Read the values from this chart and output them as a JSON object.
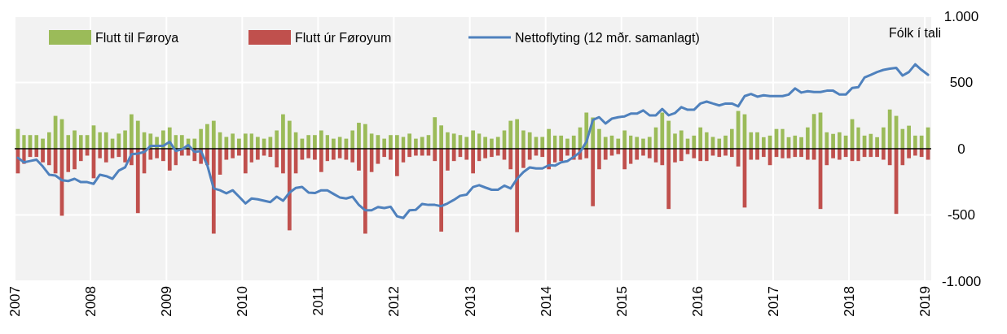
{
  "chart_data": {
    "type": "bar",
    "ylabel": "Fólk í tali",
    "x": [
      "2007-01",
      "2007-02",
      "2007-03",
      "2007-04",
      "2007-05",
      "2007-06",
      "2007-07",
      "2007-08",
      "2007-09",
      "2007-10",
      "2007-11",
      "2007-12",
      "2008-01",
      "2008-02",
      "2008-03",
      "2008-04",
      "2008-05",
      "2008-06",
      "2008-07",
      "2008-08",
      "2008-09",
      "2008-10",
      "2008-11",
      "2008-12",
      "2009-01",
      "2009-02",
      "2009-03",
      "2009-04",
      "2009-05",
      "2009-06",
      "2009-07",
      "2009-08",
      "2009-09",
      "2009-10",
      "2009-11",
      "2009-12",
      "2010-01",
      "2010-02",
      "2010-03",
      "2010-04",
      "2010-05",
      "2010-06",
      "2010-07",
      "2010-08",
      "2010-09",
      "2010-10",
      "2010-11",
      "2010-12",
      "2011-01",
      "2011-02",
      "2011-03",
      "2011-04",
      "2011-05",
      "2011-06",
      "2011-07",
      "2011-08",
      "2011-09",
      "2011-10",
      "2011-11",
      "2011-12",
      "2012-01",
      "2012-02",
      "2012-03",
      "2012-04",
      "2012-05",
      "2012-06",
      "2012-07",
      "2012-08",
      "2012-09",
      "2012-10",
      "2012-11",
      "2012-12",
      "2013-01",
      "2013-02",
      "2013-03",
      "2013-04",
      "2013-05",
      "2013-06",
      "2013-07",
      "2013-08",
      "2013-09",
      "2013-10",
      "2013-11",
      "2013-12",
      "2014-01",
      "2014-02",
      "2014-03",
      "2014-04",
      "2014-05",
      "2014-06",
      "2014-07",
      "2014-08",
      "2014-09",
      "2014-10",
      "2014-11",
      "2014-12",
      "2015-01",
      "2015-02",
      "2015-03",
      "2015-04",
      "2015-05",
      "2015-06",
      "2015-07",
      "2015-08",
      "2015-09",
      "2015-10",
      "2015-11",
      "2015-12",
      "2016-01",
      "2016-02",
      "2016-03",
      "2016-04",
      "2016-05",
      "2016-06",
      "2016-07",
      "2016-08",
      "2016-09",
      "2016-10",
      "2016-11",
      "2016-12",
      "2017-01",
      "2017-02",
      "2017-03",
      "2017-04",
      "2017-05",
      "2017-06",
      "2017-07",
      "2017-08",
      "2017-09",
      "2017-10",
      "2017-11",
      "2017-12",
      "2018-01",
      "2018-02",
      "2018-03",
      "2018-04",
      "2018-05",
      "2018-06",
      "2018-07",
      "2018-08",
      "2018-09",
      "2018-10",
      "2018-11",
      "2018-12",
      "2019-01"
    ],
    "xlim": [
      "2007-01",
      "2019-02"
    ],
    "xticks": [
      {
        "value": "2007",
        "label": "2007"
      },
      {
        "value": "2008",
        "label": "2008"
      },
      {
        "value": "2009",
        "label": "2009"
      },
      {
        "value": "2010",
        "label": "2010"
      },
      {
        "value": "2011",
        "label": "2011"
      },
      {
        "value": "2012",
        "label": "2012"
      },
      {
        "value": "2013",
        "label": "2013"
      },
      {
        "value": "2014",
        "label": "2014"
      },
      {
        "value": "2015",
        "label": "2015"
      },
      {
        "value": "2016",
        "label": "2016"
      },
      {
        "value": "2017",
        "label": "2017"
      },
      {
        "value": "2018",
        "label": "2018"
      },
      {
        "value": "2019",
        "label": "2019"
      }
    ],
    "ylim": [
      -1000,
      1000
    ],
    "yticks": [
      {
        "value": -1000,
        "label": "-1.000"
      },
      {
        "value": -500,
        "label": "-500"
      },
      0,
      500,
      {
        "value": 1000,
        "label": "1.000"
      }
    ],
    "grid": true,
    "legend": "top",
    "stacked": true,
    "series": [
      {
        "name": "Flutt til Føroya",
        "color": "#9bbb59",
        "values": [
          149,
          103,
          103,
          103,
          76,
          124,
          248,
          223,
          103,
          138,
          103,
          103,
          176,
          124,
          124,
          76,
          114,
          138,
          260,
          211,
          124,
          114,
          89,
          138,
          161,
          103,
          103,
          76,
          76,
          149,
          186,
          211,
          124,
          89,
          114,
          76,
          114,
          114,
          89,
          76,
          89,
          138,
          260,
          211,
          124,
          76,
          103,
          103,
          138,
          103,
          76,
          89,
          76,
          138,
          196,
          186,
          114,
          103,
          76,
          103,
          103,
          89,
          114,
          76,
          89,
          103,
          238,
          176,
          124,
          114,
          103,
          89,
          138,
          114,
          89,
          76,
          89,
          138,
          211,
          223,
          138,
          124,
          89,
          89,
          149,
          99,
          99,
          76,
          99,
          161,
          273,
          236,
          149,
          89,
          99,
          76,
          138,
          99,
          89,
          76,
          89,
          161,
          273,
          211,
          114,
          138,
          76,
          99,
          161,
          124,
          89,
          76,
          99,
          149,
          285,
          260,
          124,
          124,
          87,
          99,
          149,
          149,
          87,
          99,
          87,
          161,
          262,
          273,
          124,
          112,
          124,
          99,
          223,
          161,
          99,
          112,
          87,
          161,
          296,
          248,
          149,
          174,
          99,
          99,
          161
        ]
      },
      {
        "name": "Flutt úr Føroyum",
        "color": "#c0504d",
        "values": [
          -186,
          -114,
          -62,
          -62,
          -103,
          -124,
          -186,
          -506,
          -176,
          -155,
          -93,
          -52,
          -223,
          -72,
          -103,
          -72,
          -62,
          -103,
          -124,
          -486,
          -186,
          -83,
          -72,
          -93,
          -165,
          -124,
          -52,
          -52,
          -93,
          -114,
          -124,
          -641,
          -196,
          -83,
          -72,
          -52,
          -186,
          -103,
          -83,
          -52,
          -62,
          -141,
          -186,
          -616,
          -186,
          -83,
          -72,
          -83,
          -176,
          -93,
          -83,
          -72,
          -83,
          -103,
          -165,
          -641,
          -176,
          -114,
          -62,
          -83,
          -207,
          -103,
          -62,
          -52,
          -52,
          -52,
          -93,
          -626,
          -165,
          -93,
          -62,
          -83,
          -186,
          -93,
          -72,
          -62,
          -52,
          -83,
          -155,
          -630,
          -145,
          -83,
          -52,
          -62,
          -155,
          -103,
          -93,
          -52,
          -83,
          -83,
          -72,
          -434,
          -155,
          -83,
          -52,
          -41,
          -155,
          -114,
          -83,
          -52,
          -72,
          -103,
          -124,
          -455,
          -103,
          -93,
          -41,
          -72,
          -93,
          -93,
          -52,
          -62,
          -52,
          -62,
          -134,
          -444,
          -83,
          -83,
          -62,
          -124,
          -62,
          -72,
          -72,
          -62,
          -62,
          -83,
          -83,
          -455,
          -124,
          -72,
          -83,
          -62,
          -93,
          -93,
          -62,
          -62,
          -62,
          -83,
          -124,
          -492,
          -124,
          -72,
          -52,
          -62,
          -83
        ]
      },
      {
        "name": "Nettoflyting (12 mðr. samanlagt)",
        "type": "line",
        "color": "#4f81bd",
        "values": [
          -68,
          -103,
          -93,
          -83,
          -134,
          -196,
          -203,
          -238,
          -244,
          -227,
          -252,
          -252,
          -265,
          -196,
          -207,
          -227,
          -165,
          -140,
          -41,
          -37,
          -25,
          21,
          21,
          21,
          52,
          -17,
          -4,
          27,
          -25,
          -17,
          -124,
          -300,
          -314,
          -337,
          -314,
          -362,
          -413,
          -376,
          -382,
          -393,
          -403,
          -362,
          -393,
          -331,
          -296,
          -289,
          -331,
          -335,
          -314,
          -314,
          -341,
          -368,
          -376,
          -362,
          -424,
          -465,
          -465,
          -440,
          -448,
          -438,
          -510,
          -523,
          -465,
          -461,
          -417,
          -424,
          -424,
          -434,
          -413,
          -386,
          -355,
          -347,
          -289,
          -275,
          -293,
          -310,
          -310,
          -279,
          -300,
          -227,
          -176,
          -141,
          -149,
          -149,
          -124,
          -128,
          -103,
          -93,
          -62,
          -25,
          52,
          217,
          238,
          190,
          227,
          238,
          244,
          265,
          265,
          289,
          252,
          252,
          300,
          252,
          269,
          314,
          294,
          294,
          341,
          356,
          341,
          327,
          341,
          341,
          320,
          397,
          413,
          393,
          403,
          397,
          397,
          397,
          409,
          455,
          424,
          434,
          428,
          428,
          438,
          438,
          409,
          409,
          459,
          465,
          537,
          558,
          579,
          595,
          604,
          610,
          552,
          579,
          637,
          595,
          558
        ]
      }
    ]
  }
}
